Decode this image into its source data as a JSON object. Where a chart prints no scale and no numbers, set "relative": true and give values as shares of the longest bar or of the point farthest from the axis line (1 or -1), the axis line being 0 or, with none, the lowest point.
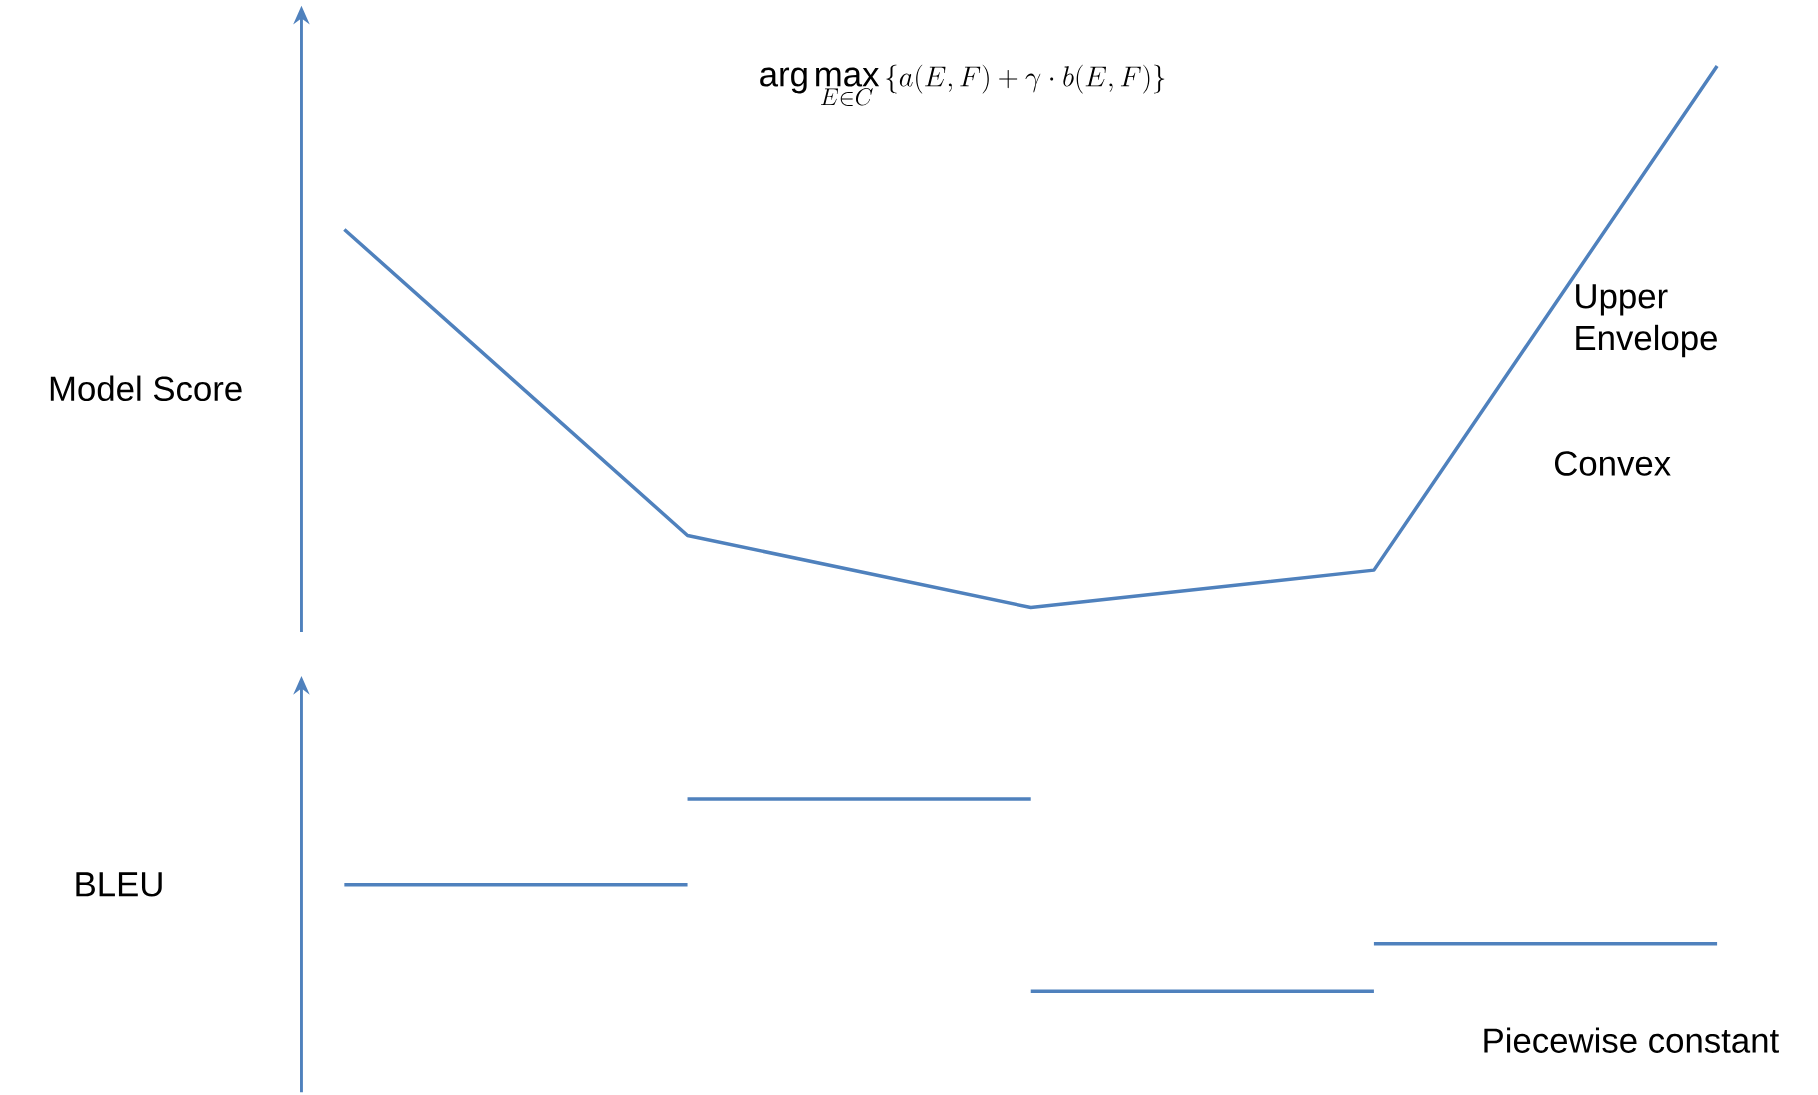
{
  "chart_data": [
    {
      "type": "line",
      "title": "\\arg\\max_{E\\in C}\\left\\{a(E,F)+\\gamma\\cdot b(E,F)\\right\\}",
      "ylabel": "Model Score",
      "relative": true,
      "categories": [
        null,
        null,
        null,
        null,
        null
      ],
      "annotations": [
        "Upper Envelope",
        "Convex"
      ],
      "series": [
        {
          "color": "#4f81bd",
          "values": [
            0.698,
            0.133,
            0,
            0.069,
            1
          ]
        }
      ]
    },
    {
      "type": "step",
      "ylabel": "BLEU",
      "relative": true,
      "categories": [
        null,
        null,
        null,
        null,
        null
      ],
      "annotations": [
        "Piecewise constant"
      ],
      "series": [
        {
          "color": "#4f81bd",
          "values": [
            0.554,
            1,
            0,
            0.247,
            0.247
          ]
        }
      ]
    }
  ]
}
